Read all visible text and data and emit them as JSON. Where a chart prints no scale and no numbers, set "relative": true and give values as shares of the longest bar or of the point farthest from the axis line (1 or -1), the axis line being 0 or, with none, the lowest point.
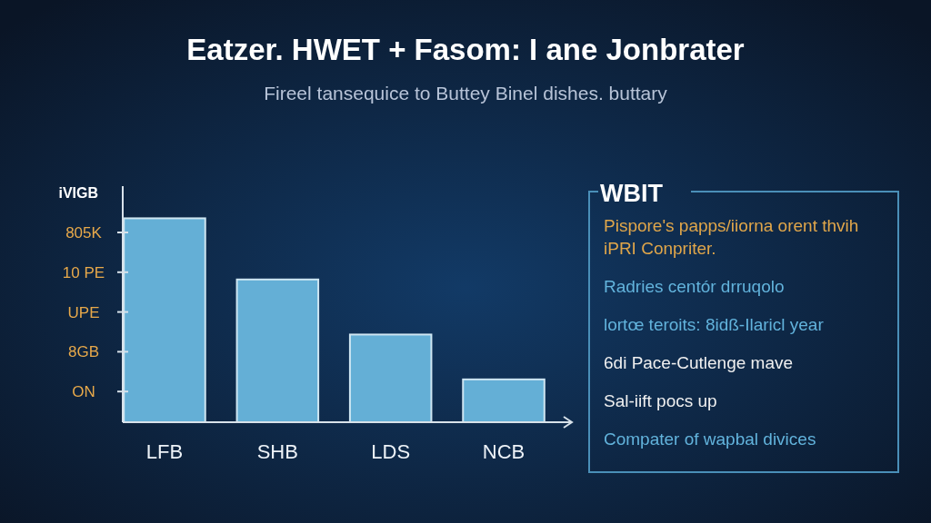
{
  "chart_data": [
    {
      "type": "bar",
      "title": "Eatzer. HWET + Fasom: I ane Jonbrater",
      "subtitle": "Fireel tansequice to Buttey Binel dishes. buttary",
      "ylabel": "iVIGB",
      "relative": true,
      "categories": [
        "LFB",
        "SHB",
        "LDS",
        "NCB"
      ],
      "values": [
        1,
        0.7,
        0.43,
        0.21
      ],
      "color": "#64afd6",
      "annotations": [
        "805K",
        "10 PE",
        "UPE",
        "8GB",
        "ON"
      ]
    },
    {
      "type": "other",
      "title": "WBIT",
      "annotations": [
        "Pispore's papps/iiorna orent thvih iPRI Conpriter.",
        "Radries centór drruqolo",
        "lortœ teroits: 8idß-Ilaricl year",
        "6di Pace-Cutlenge mave",
        "Sal-iift pocs up",
        "Compater of wapbal divices"
      ]
    }
  ]
}
